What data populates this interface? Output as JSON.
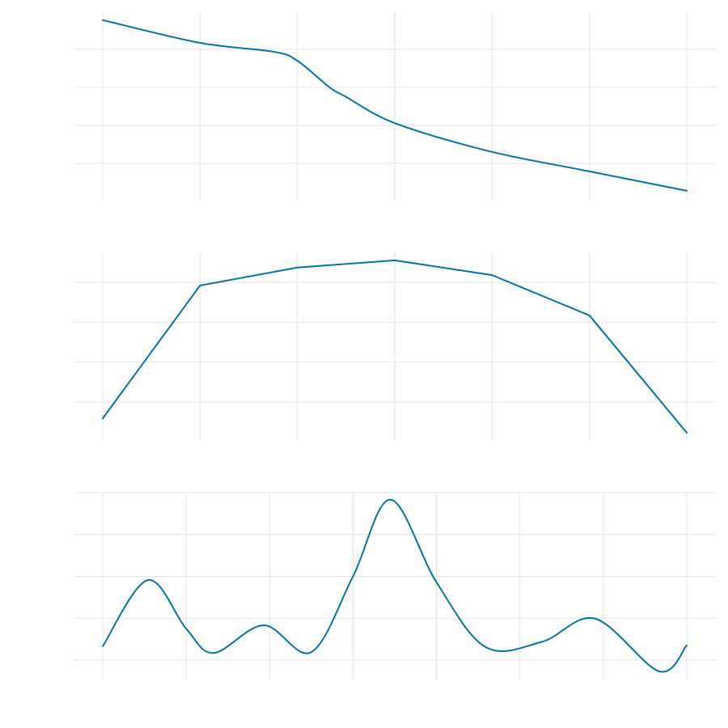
{
  "chart_data": [
    {
      "type": "line",
      "grid": true,
      "color": "#0072b2",
      "xlim": [
        0,
        6
      ],
      "ylim": [
        0.05,
        5.0
      ],
      "x_gridlines": [
        0,
        1,
        2,
        3,
        4,
        5,
        6
      ],
      "y_gridlines": [
        1,
        2,
        3,
        4
      ],
      "x": [
        0,
        1,
        1.75,
        2,
        2.33,
        2.5,
        3,
        3.97,
        5,
        6
      ],
      "y": [
        4.77,
        4.17,
        3.94,
        3.7,
        3.0,
        2.75,
        2.06,
        1.32,
        0.79,
        0.28
      ]
    },
    {
      "type": "line",
      "grid": true,
      "color": "#0072b2",
      "xlim": [
        0,
        6
      ],
      "ylim": [
        0.0,
        4.8
      ],
      "x_gridlines": [
        0,
        1,
        2,
        3,
        4,
        5,
        6
      ],
      "y_gridlines": [
        1,
        2,
        3,
        4
      ],
      "x": [
        0,
        1,
        2,
        3,
        4,
        5,
        6
      ],
      "y": [
        0.59,
        3.92,
        4.37,
        4.55,
        4.18,
        3.17,
        0.23
      ]
    },
    {
      "type": "line",
      "grid": true,
      "color": "#0072b2",
      "xlim": [
        0,
        7
      ],
      "ylim": [
        -0.5,
        4.0
      ],
      "x_gridlines": [
        0,
        1,
        2,
        3,
        4,
        5,
        6,
        7
      ],
      "y_gridlines": [
        0,
        1,
        2,
        3,
        4
      ],
      "x": [
        0,
        0.54,
        1.0,
        1.33,
        1.93,
        2.5,
        3.0,
        3.45,
        4.0,
        4.59,
        5.27,
        5.9,
        6.67,
        7.0
      ],
      "y": [
        0.33,
        1.91,
        0.75,
        0.17,
        0.83,
        0.19,
        2.0,
        3.83,
        1.86,
        0.31,
        0.44,
        0.99,
        -0.27,
        0.35
      ]
    }
  ]
}
